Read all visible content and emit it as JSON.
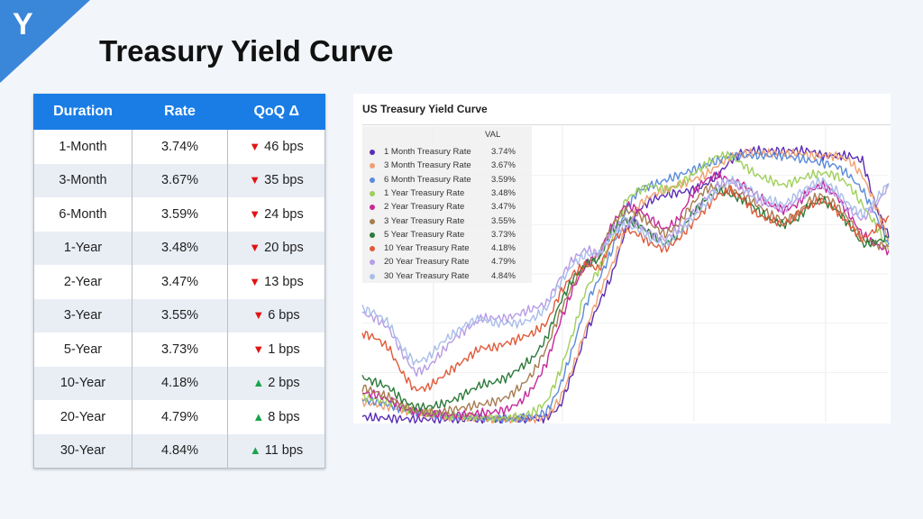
{
  "page": {
    "title": "Treasury Yield Curve"
  },
  "table": {
    "headers": [
      "Duration",
      "Rate",
      "QoQ Δ"
    ],
    "rows": [
      {
        "duration": "1-Month",
        "rate": "3.74%",
        "direction": "down",
        "change": "46 bps"
      },
      {
        "duration": "3-Month",
        "rate": "3.67%",
        "direction": "down",
        "change": "35 bps"
      },
      {
        "duration": "6-Month",
        "rate": "3.59%",
        "direction": "down",
        "change": "24 bps"
      },
      {
        "duration": "1-Year",
        "rate": "3.48%",
        "direction": "down",
        "change": "20 bps"
      },
      {
        "duration": "2-Year",
        "rate": "3.47%",
        "direction": "down",
        "change": "13 bps"
      },
      {
        "duration": "3-Year",
        "rate": "3.55%",
        "direction": "down",
        "change": "6 bps"
      },
      {
        "duration": "5-Year",
        "rate": "3.73%",
        "direction": "down",
        "change": "1 bps"
      },
      {
        "duration": "10-Year",
        "rate": "4.18%",
        "direction": "up",
        "change": "2 bps"
      },
      {
        "duration": "20-Year",
        "rate": "4.79%",
        "direction": "up",
        "change": "8 bps"
      },
      {
        "duration": "30-Year",
        "rate": "4.84%",
        "direction": "up",
        "change": "11 bps"
      }
    ],
    "colors": {
      "header": "#1a7de6",
      "down": "#e21313",
      "up": "#1aa34a"
    }
  },
  "chart_data": {
    "type": "line",
    "title": "US Treasury Yield Curve",
    "legend_header": "VAL",
    "legend_position": "top-left",
    "grid": true,
    "xlabel": "",
    "ylabel": "",
    "ylim": [
      0,
      6
    ],
    "x": [
      0,
      1,
      2,
      3,
      4,
      5,
      6,
      7,
      8,
      9,
      10,
      11,
      12,
      13,
      14,
      15,
      16,
      17,
      18,
      19,
      20,
      21,
      22,
      23,
      24,
      25,
      26,
      27,
      28,
      29,
      30,
      31,
      32,
      33,
      34,
      35,
      36,
      37,
      38,
      39,
      40
    ],
    "series": [
      {
        "name": "1 Month Treasury Rate",
        "label": "3.74%",
        "color": "#5b2db5",
        "values": [
          0.1,
          0.08,
          0.07,
          0.06,
          0.05,
          0.05,
          0.05,
          0.05,
          0.05,
          0.05,
          0.05,
          0.05,
          0.05,
          0.06,
          0.08,
          0.3,
          1.0,
          1.8,
          2.4,
          3.0,
          3.9,
          4.3,
          4.5,
          4.6,
          4.65,
          4.7,
          4.8,
          5.0,
          5.3,
          5.5,
          5.5,
          5.5,
          5.5,
          5.5,
          5.5,
          5.4,
          5.4,
          5.4,
          5.3,
          4.4,
          3.74
        ]
      },
      {
        "name": "3 Month Treasury Rate",
        "label": "3.67%",
        "color": "#f0a070",
        "values": [
          0.4,
          0.35,
          0.3,
          0.25,
          0.18,
          0.15,
          0.12,
          0.1,
          0.08,
          0.07,
          0.06,
          0.05,
          0.05,
          0.06,
          0.1,
          0.45,
          1.1,
          1.9,
          2.6,
          3.2,
          3.9,
          4.4,
          4.6,
          4.7,
          4.8,
          4.9,
          5.0,
          5.2,
          5.4,
          5.45,
          5.45,
          5.45,
          5.45,
          5.45,
          5.4,
          5.4,
          5.4,
          5.3,
          5.0,
          4.4,
          3.67
        ]
      },
      {
        "name": "6 Month Treasury Rate",
        "label": "3.59%",
        "color": "#5b8bd9",
        "values": [
          0.45,
          0.4,
          0.35,
          0.25,
          0.2,
          0.15,
          0.12,
          0.1,
          0.1,
          0.08,
          0.07,
          0.06,
          0.06,
          0.1,
          0.2,
          0.7,
          1.5,
          2.4,
          2.9,
          3.5,
          4.3,
          4.7,
          4.8,
          4.9,
          5.0,
          5.1,
          5.2,
          5.3,
          5.4,
          5.4,
          5.4,
          5.4,
          5.4,
          5.35,
          5.3,
          5.25,
          5.2,
          5.0,
          4.7,
          4.2,
          3.59
        ]
      },
      {
        "name": "1 Year Treasury Rate",
        "label": "3.48%",
        "color": "#9fcf5a",
        "values": [
          0.5,
          0.45,
          0.4,
          0.3,
          0.22,
          0.17,
          0.14,
          0.12,
          0.1,
          0.1,
          0.08,
          0.07,
          0.1,
          0.2,
          0.4,
          1.0,
          1.8,
          2.7,
          3.1,
          3.7,
          4.5,
          4.7,
          4.8,
          4.7,
          4.8,
          5.0,
          5.2,
          5.4,
          5.4,
          5.2,
          5.0,
          4.9,
          4.8,
          4.9,
          5.0,
          5.05,
          5.0,
          4.8,
          4.4,
          4.0,
          3.48
        ]
      },
      {
        "name": "2 Year Treasury Rate",
        "label": "3.47%",
        "color": "#c7279b",
        "values": [
          0.6,
          0.55,
          0.45,
          0.3,
          0.2,
          0.15,
          0.15,
          0.13,
          0.15,
          0.17,
          0.2,
          0.25,
          0.4,
          0.7,
          1.2,
          2.0,
          2.7,
          3.2,
          3.4,
          4.0,
          4.4,
          4.3,
          4.1,
          3.9,
          4.1,
          4.6,
          4.9,
          5.0,
          4.9,
          4.8,
          4.6,
          4.4,
          4.3,
          4.4,
          4.7,
          4.8,
          4.6,
          4.2,
          3.8,
          3.6,
          3.47
        ]
      },
      {
        "name": "3 Year Treasury Rate",
        "label": "3.55%",
        "color": "#a67c52",
        "values": [
          0.7,
          0.6,
          0.5,
          0.35,
          0.22,
          0.18,
          0.2,
          0.25,
          0.3,
          0.35,
          0.4,
          0.5,
          0.7,
          1.0,
          1.5,
          2.2,
          2.8,
          3.2,
          3.4,
          4.0,
          4.3,
          4.2,
          4.0,
          3.8,
          4.0,
          4.4,
          4.7,
          4.8,
          4.7,
          4.6,
          4.4,
          4.2,
          4.1,
          4.2,
          4.5,
          4.6,
          4.4,
          4.1,
          3.7,
          3.6,
          3.55
        ]
      },
      {
        "name": "5 Year Treasury Rate",
        "label": "3.73%",
        "color": "#2d7a3a",
        "values": [
          0.9,
          0.8,
          0.7,
          0.45,
          0.3,
          0.3,
          0.35,
          0.45,
          0.6,
          0.75,
          0.8,
          0.9,
          1.1,
          1.3,
          1.7,
          2.4,
          2.9,
          3.2,
          3.3,
          3.9,
          4.1,
          4.0,
          3.8,
          3.6,
          3.8,
          4.2,
          4.5,
          4.7,
          4.6,
          4.5,
          4.3,
          4.1,
          4.0,
          4.1,
          4.4,
          4.5,
          4.3,
          4.0,
          3.6,
          3.65,
          3.73
        ]
      },
      {
        "name": "10 Year Treasury Rate",
        "label": "4.18%",
        "color": "#e05a3a",
        "values": [
          1.8,
          1.7,
          1.5,
          1.0,
          0.65,
          0.7,
          0.9,
          1.1,
          1.3,
          1.5,
          1.5,
          1.6,
          1.7,
          1.8,
          2.0,
          2.6,
          3.0,
          3.2,
          3.1,
          3.7,
          3.9,
          3.8,
          3.6,
          3.5,
          3.7,
          4.0,
          4.3,
          4.6,
          4.7,
          4.5,
          4.2,
          4.1,
          4.0,
          4.2,
          4.4,
          4.5,
          4.3,
          4.0,
          3.7,
          3.9,
          4.18
        ]
      },
      {
        "name": "20 Year Treasury Rate",
        "label": "4.79%",
        "color": "#b79ce6",
        "values": [
          2.2,
          2.1,
          1.9,
          1.4,
          1.0,
          1.1,
          1.4,
          1.7,
          1.9,
          2.1,
          2.1,
          2.1,
          2.2,
          2.3,
          2.4,
          2.9,
          3.3,
          3.5,
          3.4,
          3.9,
          4.1,
          4.0,
          3.8,
          3.7,
          3.9,
          4.2,
          4.5,
          4.8,
          4.9,
          4.7,
          4.5,
          4.4,
          4.3,
          4.5,
          4.7,
          4.8,
          4.6,
          4.3,
          4.1,
          4.4,
          4.79
        ]
      },
      {
        "name": "30 Year Treasury Rate",
        "label": "4.84%",
        "color": "#a9bde8",
        "values": [
          2.3,
          2.2,
          2.0,
          1.5,
          1.2,
          1.3,
          1.6,
          1.8,
          2.0,
          2.1,
          2.0,
          2.0,
          2.0,
          2.1,
          2.3,
          2.8,
          3.2,
          3.4,
          3.4,
          3.8,
          4.0,
          3.9,
          3.7,
          3.6,
          3.8,
          4.1,
          4.4,
          4.7,
          4.9,
          4.8,
          4.6,
          4.5,
          4.4,
          4.6,
          4.8,
          4.9,
          4.7,
          4.4,
          4.2,
          4.5,
          4.84
        ]
      }
    ]
  },
  "logo": {
    "icon": "logo-y-icon",
    "color": "#3a86d9"
  }
}
